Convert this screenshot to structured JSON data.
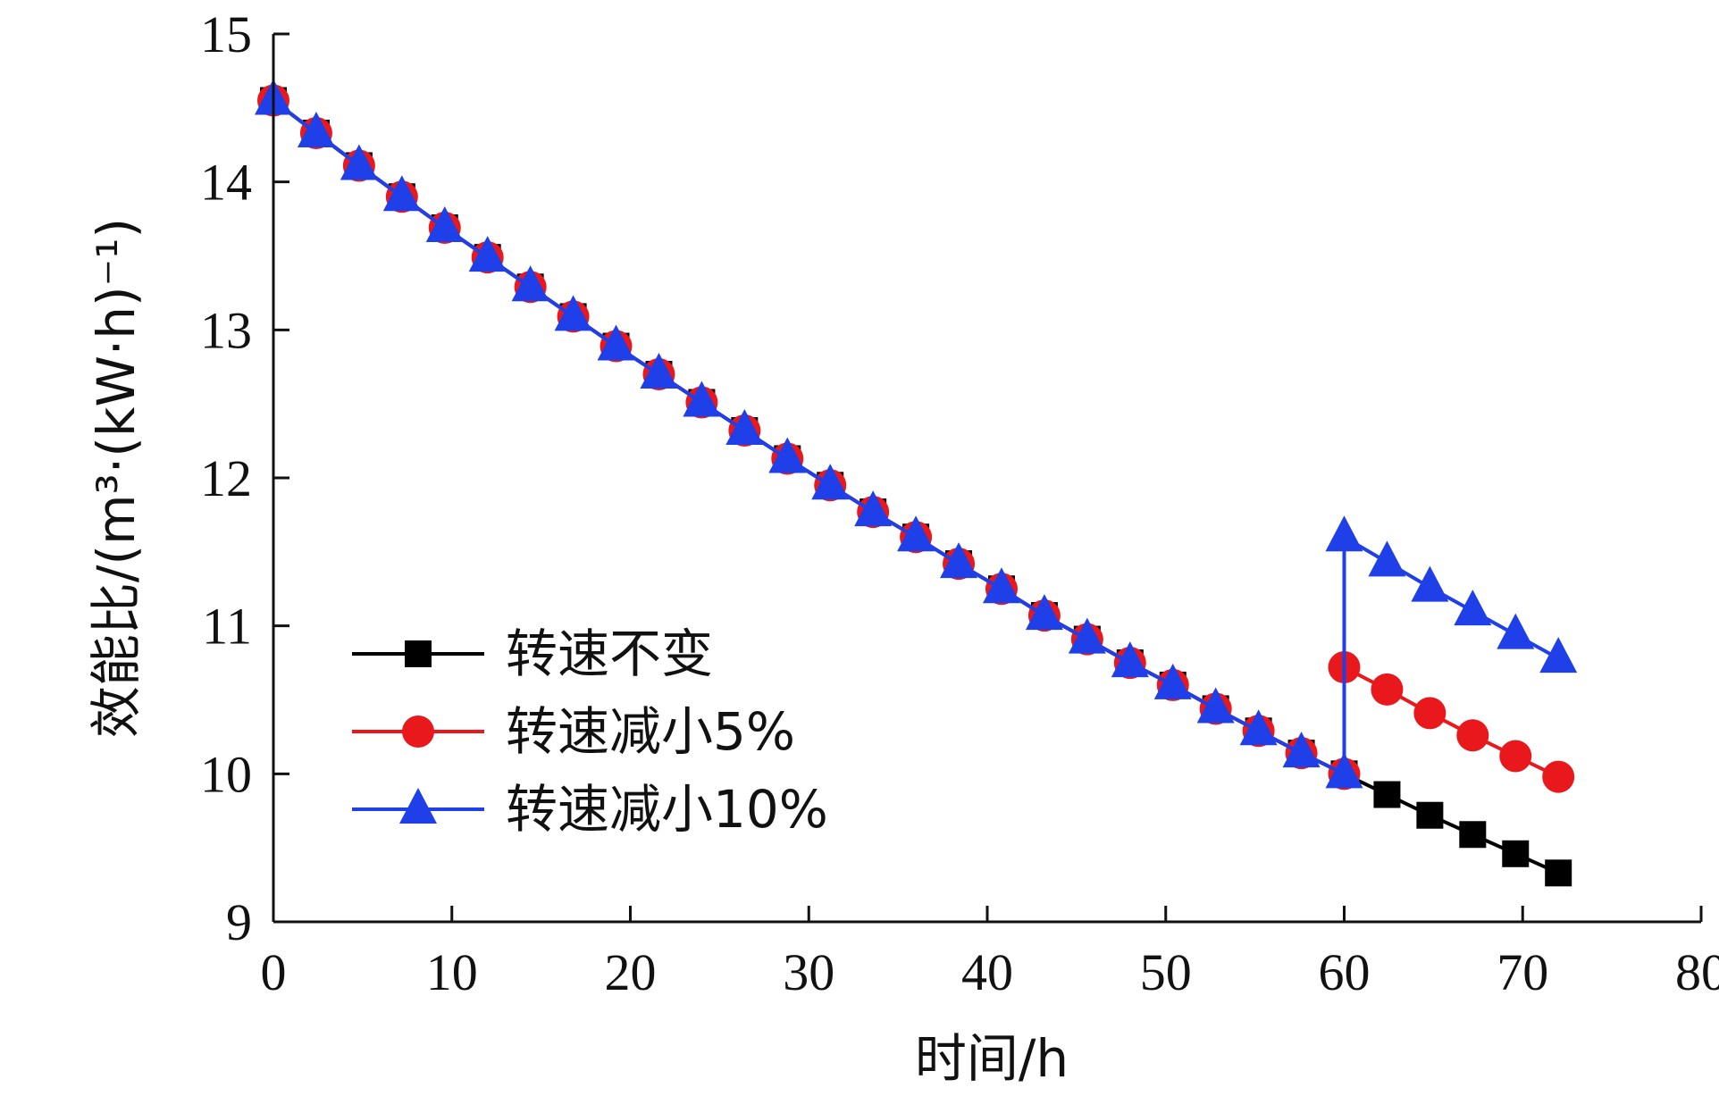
{
  "chart_data": {
    "type": "line",
    "xlabel": "时间/h",
    "ylabel": "效能比/(m³·(kW·h)⁻¹)",
    "xlim": [
      0,
      80
    ],
    "ylim": [
      9,
      15
    ],
    "xticks": [
      "0",
      "10",
      "20",
      "30",
      "40",
      "50",
      "60",
      "70",
      "80"
    ],
    "yticks": [
      "9",
      "10",
      "11",
      "12",
      "13",
      "14",
      "15"
    ],
    "grid": false,
    "legend_position": "bottom-left",
    "series": [
      {
        "name": "转速不变",
        "color": "#000000",
        "marker": "square",
        "x": [
          0,
          2.4,
          4.8,
          7.2,
          9.6,
          12,
          14.4,
          16.8,
          19.2,
          21.6,
          24,
          26.4,
          28.8,
          31.2,
          33.6,
          36,
          38.4,
          40.8,
          43.2,
          45.6,
          48,
          50.4,
          52.8,
          55.2,
          57.6,
          60,
          62.4,
          64.8,
          67.2,
          69.6,
          72
        ],
        "y": [
          14.55,
          14.33,
          14.11,
          13.9,
          13.69,
          13.49,
          13.29,
          13.09,
          12.89,
          12.7,
          12.51,
          12.32,
          12.13,
          11.95,
          11.77,
          11.6,
          11.42,
          11.25,
          11.07,
          10.91,
          10.75,
          10.6,
          10.44,
          10.29,
          10.14,
          10.0,
          9.86,
          9.72,
          9.59,
          9.46,
          9.33
        ]
      },
      {
        "name": "转速减小5%",
        "color": "#e8181c",
        "marker": "circle",
        "x": [
          0,
          2.4,
          4.8,
          7.2,
          9.6,
          12,
          14.4,
          16.8,
          19.2,
          21.6,
          24,
          26.4,
          28.8,
          31.2,
          33.6,
          36,
          38.4,
          40.8,
          43.2,
          45.6,
          48,
          50.4,
          52.8,
          55.2,
          57.6,
          60,
          60,
          62.4,
          64.8,
          67.2,
          69.6,
          72
        ],
        "y": [
          14.55,
          14.33,
          14.11,
          13.9,
          13.69,
          13.49,
          13.29,
          13.09,
          12.89,
          12.7,
          12.51,
          12.32,
          12.13,
          11.95,
          11.77,
          11.6,
          11.42,
          11.25,
          11.07,
          10.91,
          10.75,
          10.6,
          10.44,
          10.29,
          10.14,
          10.0,
          10.72,
          10.57,
          10.41,
          10.26,
          10.12,
          9.98
        ]
      },
      {
        "name": "转速减小10%",
        "color": "#1f3fe8",
        "marker": "triangle",
        "x": [
          0,
          2.4,
          4.8,
          7.2,
          9.6,
          12,
          14.4,
          16.8,
          19.2,
          21.6,
          24,
          26.4,
          28.8,
          31.2,
          33.6,
          36,
          38.4,
          40.8,
          43.2,
          45.6,
          48,
          50.4,
          52.8,
          55.2,
          57.6,
          60,
          60,
          62.4,
          64.8,
          67.2,
          69.6,
          72
        ],
        "y": [
          14.55,
          14.33,
          14.11,
          13.9,
          13.69,
          13.49,
          13.29,
          13.09,
          12.89,
          12.7,
          12.51,
          12.32,
          12.13,
          11.95,
          11.77,
          11.6,
          11.42,
          11.25,
          11.07,
          10.91,
          10.75,
          10.6,
          10.44,
          10.29,
          10.14,
          10.0,
          11.6,
          11.43,
          11.26,
          11.1,
          10.94,
          10.78
        ]
      }
    ]
  }
}
